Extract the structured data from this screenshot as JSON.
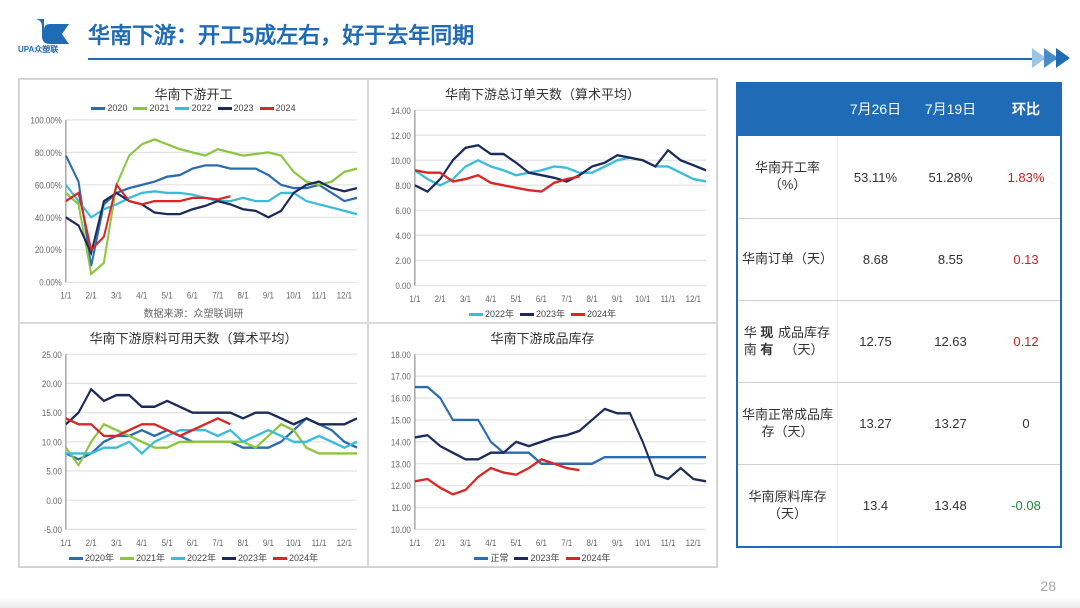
{
  "page": {
    "title": "华南下游：开工5成左右，好于去年同期",
    "logo": {
      "top_text": "UPA",
      "bottom_text": "众塑联",
      "color": "#1f6bb5"
    },
    "page_number": "28"
  },
  "colors": {
    "brand": "#1f6bb5",
    "series": {
      "y2020": "#2b6cb0",
      "y2021": "#8cc63f",
      "y2022": "#3bbcd9",
      "y2023": "#1b2b5a",
      "y2024": "#d92626",
      "normal": "#2b6cb0"
    },
    "grid": "#e2e2e2",
    "axis": "#7a7a7a",
    "background": "#ffffff"
  },
  "x_labels_monthly": [
    "1/1",
    "2/1",
    "3/1",
    "4/1",
    "5/1",
    "6/1",
    "7/1",
    "8/1",
    "9/1",
    "10/1",
    "11/1",
    "12/1"
  ],
  "chart1": {
    "title": "华南下游开工",
    "subtitle": "数据来源：众塑联调研",
    "ylim": [
      0,
      100
    ],
    "ytick_step": 20,
    "y_suffix": "%",
    "y_format": "percent_2dec",
    "legend_pos": "top",
    "line_width": 2,
    "title_fontsize": 13,
    "label_fontsize": 9,
    "legend": [
      {
        "key": "y2020",
        "label": "2020"
      },
      {
        "key": "y2021",
        "label": "2021"
      },
      {
        "key": "y2022",
        "label": "2022"
      },
      {
        "key": "y2023",
        "label": "2023"
      },
      {
        "key": "y2024",
        "label": "2024"
      }
    ],
    "series": {
      "y2020": [
        78,
        62,
        10,
        48,
        55,
        58,
        60,
        62,
        65,
        66,
        70,
        72,
        72,
        70,
        70,
        70,
        66,
        60,
        58,
        58,
        60,
        55,
        50,
        52
      ],
      "y2021": [
        55,
        48,
        5,
        12,
        60,
        78,
        85,
        88,
        85,
        82,
        80,
        78,
        82,
        80,
        78,
        79,
        80,
        78,
        68,
        62,
        60,
        62,
        68,
        70
      ],
      "y2022": [
        60,
        50,
        40,
        45,
        48,
        52,
        55,
        56,
        55,
        55,
        54,
        52,
        50,
        50,
        52,
        50,
        50,
        55,
        55,
        50,
        48,
        46,
        44,
        42
      ],
      "y2023": [
        40,
        35,
        18,
        50,
        55,
        50,
        48,
        43,
        42,
        42,
        45,
        47,
        50,
        48,
        45,
        44,
        40,
        44,
        55,
        60,
        62,
        58,
        56,
        58
      ],
      "y2024": [
        50,
        55,
        20,
        28,
        60,
        50,
        48,
        50,
        50,
        50,
        52,
        52,
        51,
        53
      ]
    }
  },
  "chart2": {
    "title": "华南下游总订单天数（算术平均）",
    "ylim": [
      0,
      14
    ],
    "ytick_step": 2,
    "y_suffix": "",
    "legend_pos": "bottom",
    "line_width": 2,
    "title_fontsize": 13,
    "label_fontsize": 9,
    "legend": [
      {
        "key": "y2022",
        "label": "2022年"
      },
      {
        "key": "y2023",
        "label": "2023年"
      },
      {
        "key": "y2024",
        "label": "2024年"
      }
    ],
    "series": {
      "y2022": [
        9.2,
        8.5,
        8.0,
        8.5,
        9.5,
        10.0,
        9.5,
        9.2,
        8.8,
        9.0,
        9.2,
        9.5,
        9.4,
        9.0,
        9.0,
        9.5,
        10.0,
        10.2,
        10.0,
        9.5,
        9.5,
        9.0,
        8.5,
        8.3
      ],
      "y2023": [
        8.0,
        7.5,
        8.5,
        10.0,
        11.0,
        11.2,
        10.5,
        10.5,
        9.8,
        9.0,
        8.8,
        8.6,
        8.3,
        8.8,
        9.5,
        9.8,
        10.4,
        10.2,
        10.0,
        9.5,
        10.8,
        10.0,
        9.6,
        9.2
      ],
      "y2024": [
        9.2,
        9.0,
        9.0,
        8.3,
        8.5,
        8.8,
        8.2,
        8.0,
        7.8,
        7.6,
        7.5,
        8.2,
        8.5,
        8.7
      ]
    }
  },
  "chart3": {
    "title": "华南下游原料可用天数（算术平均）",
    "ylim": [
      -5,
      25
    ],
    "ytick_step": 5,
    "y_suffix": "",
    "legend_pos": "bottom",
    "line_width": 2,
    "title_fontsize": 13,
    "label_fontsize": 9,
    "legend": [
      {
        "key": "y2020",
        "label": "2020年"
      },
      {
        "key": "y2021",
        "label": "2021年"
      },
      {
        "key": "y2022",
        "label": "2022年"
      },
      {
        "key": "y2023",
        "label": "2023年"
      },
      {
        "key": "y2024",
        "label": "2024年"
      }
    ],
    "series": {
      "y2020": [
        8,
        7,
        8,
        10,
        11,
        11,
        12,
        11,
        12,
        11,
        10,
        10,
        10,
        10,
        9,
        9,
        9,
        10,
        12,
        14,
        13,
        12,
        10,
        9
      ],
      "y2021": [
        9,
        6,
        10,
        13,
        12,
        11,
        10,
        9,
        9,
        10,
        10,
        10,
        10,
        10,
        10,
        9,
        11,
        13,
        12,
        9,
        8,
        8,
        8,
        8
      ],
      "y2022": [
        8,
        8,
        8,
        9,
        9,
        10,
        8,
        10,
        11,
        12,
        12,
        12,
        11,
        12,
        10,
        11,
        12,
        11,
        10,
        10,
        11,
        10,
        9,
        10
      ],
      "y2023": [
        13,
        15,
        19,
        17,
        18,
        18,
        16,
        16,
        17,
        16,
        15,
        15,
        15,
        15,
        14,
        15,
        15,
        14,
        13,
        14,
        13,
        13,
        13,
        14
      ],
      "y2024": [
        14,
        13,
        13,
        11,
        11,
        12,
        13,
        13,
        12,
        11,
        12,
        13,
        14,
        13
      ]
    }
  },
  "chart4": {
    "title": "华南下游成品库存",
    "ylim": [
      10,
      18
    ],
    "ytick_step": 1,
    "y_suffix": "",
    "legend_pos": "bottom",
    "line_width": 2,
    "title_fontsize": 13,
    "label_fontsize": 9,
    "legend": [
      {
        "key": "normal",
        "label": "正常"
      },
      {
        "key": "y2023",
        "label": "2023年"
      },
      {
        "key": "y2024",
        "label": "2024年"
      }
    ],
    "series": {
      "normal": [
        16.5,
        16.5,
        16.0,
        15.0,
        15.0,
        15.0,
        14.0,
        13.5,
        13.5,
        13.5,
        13.0,
        13.0,
        13.0,
        13.0,
        13.0,
        13.3,
        13.3,
        13.3,
        13.3,
        13.3,
        13.3,
        13.3,
        13.3,
        13.3
      ],
      "y2023": [
        14.2,
        14.3,
        13.8,
        13.5,
        13.2,
        13.2,
        13.5,
        13.5,
        14.0,
        13.8,
        14.0,
        14.2,
        14.3,
        14.5,
        15.0,
        15.5,
        15.3,
        15.3,
        14.0,
        12.5,
        12.3,
        12.8,
        12.3,
        12.2
      ],
      "y2024": [
        12.2,
        12.3,
        11.9,
        11.6,
        11.8,
        12.4,
        12.8,
        12.6,
        12.5,
        12.8,
        13.2,
        13.0,
        12.8,
        12.7
      ]
    }
  },
  "table": {
    "headers": [
      "",
      "7月26日",
      "7月19日",
      "环比"
    ],
    "rows": [
      {
        "label": "华南开工率（%）",
        "c1": "53.11%",
        "c2": "51.28%",
        "delta": "1.83%",
        "sign": "pos"
      },
      {
        "label": "华南订单（天）",
        "c1": "8.68",
        "c2": "8.55",
        "delta": "0.13",
        "sign": "pos"
      },
      {
        "label": "华南<b>现有</b>成品库存（天）",
        "c1": "12.75",
        "c2": "12.63",
        "delta": "0.12",
        "sign": "pos",
        "label_has_bold": true
      },
      {
        "label": "华南正常成品库存（天）",
        "c1": "13.27",
        "c2": "13.27",
        "delta": "0",
        "sign": "zero"
      },
      {
        "label": "华南原料库存（天）",
        "c1": "13.4",
        "c2": "13.48",
        "delta": "-0.08",
        "sign": "neg"
      }
    ]
  }
}
